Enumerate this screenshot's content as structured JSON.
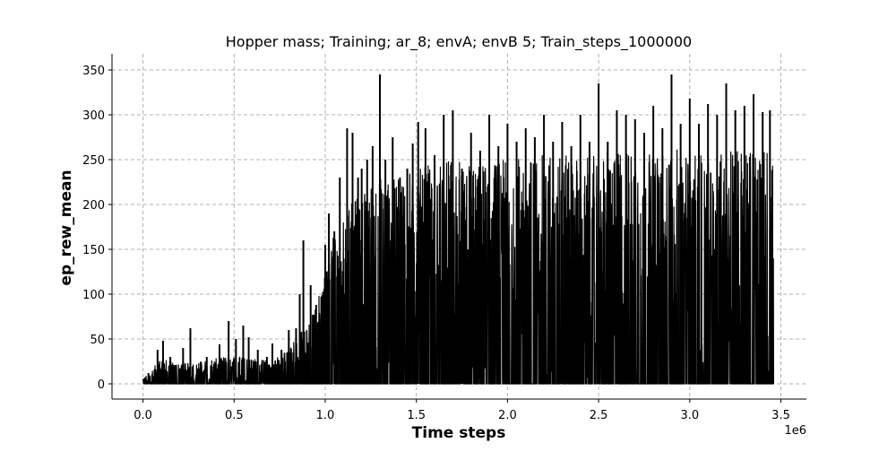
{
  "chart_data": {
    "type": "line",
    "title": "Hopper mass; Training; ar_8; envA; envB 5; Train_steps_1000000",
    "xlabel": "Time steps",
    "ylabel": "ep_rew_mean",
    "x_offset_label": "1e6",
    "xlim": [
      -0.17,
      3.64
    ],
    "ylim": [
      -17,
      368
    ],
    "grid": true,
    "x_ticks": [
      0.0,
      0.5,
      1.0,
      1.5,
      2.0,
      2.5,
      3.0,
      3.5
    ],
    "x_tick_labels": [
      "0.0",
      "0.5",
      "1.0",
      "1.5",
      "2.0",
      "2.5",
      "3.0",
      "3.5"
    ],
    "y_ticks": [
      0,
      50,
      100,
      150,
      200,
      250,
      300,
      350
    ],
    "y_tick_labels": [
      "0",
      "50",
      "100",
      "150",
      "200",
      "250",
      "300",
      "350"
    ],
    "series": [
      {
        "name": "ep_rew_mean",
        "color": "#000000",
        "x_range": [
          0.0,
          3.46
        ],
        "envelope_x": [
          0.0,
          0.1,
          0.2,
          0.3,
          0.4,
          0.5,
          0.6,
          0.7,
          0.8,
          0.85,
          0.9,
          0.95,
          1.0,
          1.05,
          1.1,
          1.2,
          1.3,
          1.4,
          1.5,
          1.6,
          1.7,
          1.8,
          1.9,
          2.0,
          2.1,
          2.2,
          2.3,
          2.4,
          2.5,
          2.6,
          2.7,
          2.8,
          2.9,
          3.0,
          3.1,
          3.2,
          3.3,
          3.4,
          3.46
        ],
        "envelope_high": [
          5,
          28,
          22,
          24,
          28,
          32,
          28,
          26,
          38,
          55,
          65,
          85,
          130,
          175,
          190,
          215,
          230,
          228,
          240,
          245,
          250,
          248,
          245,
          250,
          252,
          255,
          255,
          252,
          258,
          260,
          262,
          255,
          262,
          258,
          262,
          262,
          265,
          262,
          262
        ],
        "envelope_low": [
          0,
          3,
          2,
          2,
          3,
          4,
          3,
          3,
          8,
          15,
          20,
          30,
          45,
          55,
          60,
          70,
          75,
          70,
          75,
          75,
          78,
          72,
          75,
          70,
          72,
          75,
          75,
          70,
          72,
          75,
          75,
          72,
          70,
          72,
          75,
          70,
          72,
          75,
          70
        ],
        "spikes": [
          [
            0.03,
            12
          ],
          [
            0.08,
            38
          ],
          [
            0.11,
            48
          ],
          [
            0.15,
            30
          ],
          [
            0.22,
            40
          ],
          [
            0.26,
            62
          ],
          [
            0.35,
            30
          ],
          [
            0.42,
            44
          ],
          [
            0.47,
            70
          ],
          [
            0.51,
            50
          ],
          [
            0.55,
            65
          ],
          [
            0.58,
            52
          ],
          [
            0.63,
            38
          ],
          [
            0.68,
            30
          ],
          [
            0.71,
            45
          ],
          [
            0.76,
            38
          ],
          [
            0.8,
            60
          ],
          [
            0.84,
            62
          ],
          [
            0.86,
            100
          ],
          [
            0.88,
            160
          ],
          [
            0.92,
            110
          ],
          [
            0.95,
            88
          ],
          [
            1.0,
            155
          ],
          [
            1.02,
            190
          ],
          [
            1.05,
            170
          ],
          [
            1.08,
            230
          ],
          [
            1.12,
            285
          ],
          [
            1.15,
            280
          ],
          [
            1.18,
            230
          ],
          [
            1.2,
            240
          ],
          [
            1.23,
            250
          ],
          [
            1.26,
            265
          ],
          [
            1.3,
            345
          ],
          [
            1.33,
            250
          ],
          [
            1.37,
            275
          ],
          [
            1.41,
            230
          ],
          [
            1.45,
            240
          ],
          [
            1.48,
            268
          ],
          [
            1.51,
            292
          ],
          [
            1.55,
            285
          ],
          [
            1.6,
            255
          ],
          [
            1.65,
            300
          ],
          [
            1.7,
            305
          ],
          [
            1.75,
            240
          ],
          [
            1.8,
            280
          ],
          [
            1.85,
            260
          ],
          [
            1.9,
            300
          ],
          [
            1.95,
            265
          ],
          [
            2.0,
            290
          ],
          [
            2.05,
            270
          ],
          [
            2.1,
            285
          ],
          [
            2.15,
            275
          ],
          [
            2.2,
            300
          ],
          [
            2.25,
            270
          ],
          [
            2.3,
            292
          ],
          [
            2.35,
            265
          ],
          [
            2.4,
            300
          ],
          [
            2.45,
            270
          ],
          [
            2.5,
            335
          ],
          [
            2.55,
            270
          ],
          [
            2.6,
            305
          ],
          [
            2.65,
            300
          ],
          [
            2.7,
            295
          ],
          [
            2.75,
            280
          ],
          [
            2.8,
            310
          ],
          [
            2.85,
            285
          ],
          [
            2.9,
            345
          ],
          [
            2.95,
            290
          ],
          [
            3.0,
            318
          ],
          [
            3.05,
            290
          ],
          [
            3.1,
            312
          ],
          [
            3.15,
            300
          ],
          [
            3.2,
            335
          ],
          [
            3.25,
            305
          ],
          [
            3.3,
            310
          ],
          [
            3.35,
            323
          ],
          [
            3.4,
            303
          ],
          [
            3.44,
            305
          ]
        ]
      }
    ]
  }
}
